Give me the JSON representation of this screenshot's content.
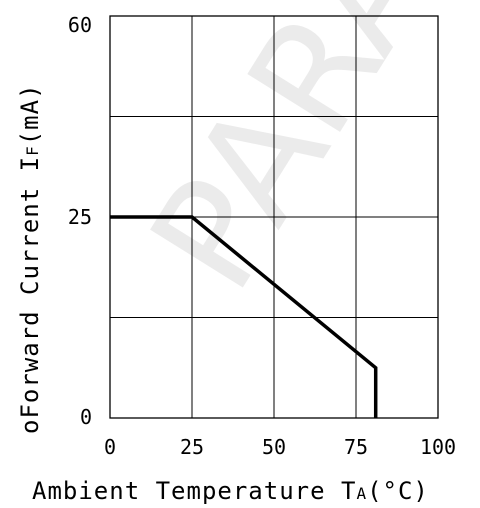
{
  "chart_data": {
    "type": "line",
    "xlabel_main": "Ambient Temperature T",
    "xlabel_sub": "A",
    "xlabel_unit": "(°C)",
    "ylabel_main": "Forward Current I",
    "ylabel_sub": "F",
    "ylabel_unit": "(mA)",
    "ylabel_prefix": "o",
    "xlim": [
      0,
      100
    ],
    "ylim": [
      0,
      60
    ],
    "x_ticks": [
      "0",
      "25",
      "50",
      "75",
      "100"
    ],
    "y_ticks": [
      "0",
      "25",
      "60"
    ],
    "grid": true,
    "series": [
      {
        "x": [
          0,
          25,
          81,
          81
        ],
        "y": [
          30,
          30,
          7.5,
          0
        ]
      }
    ]
  },
  "watermark": "PARA"
}
